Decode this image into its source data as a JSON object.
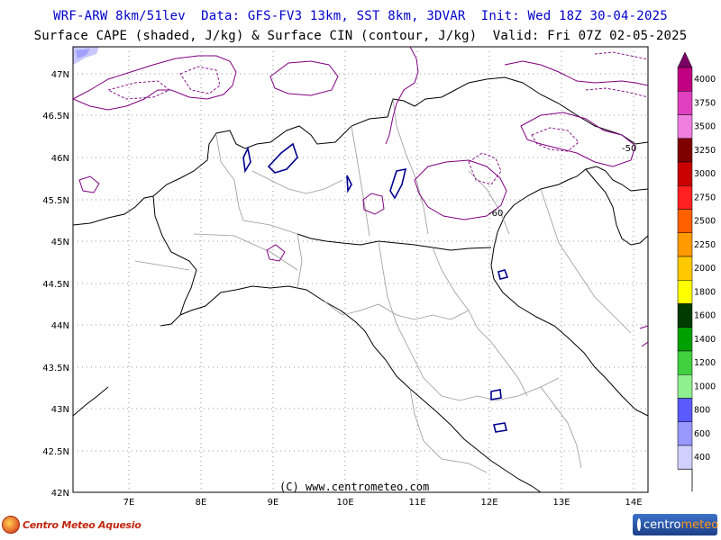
{
  "header": {
    "line1": "WRF-ARW 8km/51lev  Data: GFS-FV3 13km, SST 8km, 3DVAR  Init: Wed 18Z 30-04-2025",
    "line2": "Surface CAPE (shaded, J/kg) & Surface CIN (contour, J/kg)  Valid: Fri 07Z 02-05-2025"
  },
  "map": {
    "lat_labels": [
      "47N",
      "46.5N",
      "46N",
      "45.5N",
      "45N",
      "44.5N",
      "44N",
      "43.5N",
      "43N",
      "42.5N",
      "42N"
    ],
    "lon_labels": [
      "7E",
      "8E",
      "9E",
      "10E",
      "11E",
      "12E",
      "13E",
      "14E"
    ],
    "contour_labels": [
      "-50",
      "-60"
    ],
    "credit": "(C) www.centrometeo.com"
  },
  "colorbar": {
    "levels": [
      "4000",
      "3750",
      "3500",
      "3250",
      "3000",
      "2750",
      "2500",
      "2250",
      "2000",
      "1800",
      "1600",
      "1400",
      "1200",
      "1000",
      "800",
      "600",
      "400"
    ],
    "colors": [
      "#c00080",
      "#e040c0",
      "#f080e0",
      "#800000",
      "#c80000",
      "#ff2020",
      "#ff6000",
      "#ff9a00",
      "#ffc800",
      "#ffff00",
      "#003c00",
      "#00a000",
      "#40d040",
      "#90f090",
      "#5a5aff",
      "#9898ff",
      "#d0d0ff"
    ],
    "top_color": "#7a0064"
  },
  "logos": {
    "left_text": "Centro Meteo Aquesio",
    "right_text_a": "centro",
    "right_text_b": "meteo"
  }
}
